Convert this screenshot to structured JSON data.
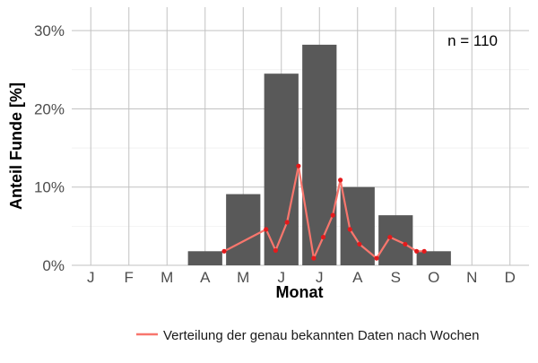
{
  "chart_data": {
    "type": "bar",
    "xlabel": "Monat",
    "ylabel": "Anteil Funde [%]",
    "categories": [
      "J",
      "F",
      "M",
      "A",
      "M",
      "J",
      "J",
      "A",
      "S",
      "O",
      "N",
      "D"
    ],
    "ylim": [
      0,
      33
    ],
    "yticks": [
      0,
      10,
      20,
      30
    ],
    "ytick_labels": [
      "0%",
      "10%",
      "20%",
      "30%"
    ],
    "grid": true,
    "annotation": "n = 110",
    "series": [
      {
        "type": "bar",
        "values": [
          0,
          0,
          0,
          1.8,
          9.1,
          24.5,
          28.2,
          10.0,
          6.4,
          1.8,
          0,
          0
        ],
        "color": "#595959"
      },
      {
        "type": "line",
        "name": "Verteilung der genau bekannten Daten nach Wochen",
        "color": "#f8766d",
        "point_color": "#e41a1c",
        "x": [
          3.5,
          4.6,
          4.85,
          5.15,
          5.45,
          5.85,
          6.1,
          6.35,
          6.55,
          6.8,
          7.05,
          7.5,
          7.85,
          8.25,
          8.55,
          8.75
        ],
        "values": [
          1.8,
          4.6,
          1.9,
          5.5,
          12.7,
          0.9,
          3.6,
          6.4,
          10.9,
          4.6,
          2.7,
          0.9,
          3.6,
          2.7,
          1.8,
          1.8
        ]
      }
    ],
    "legend_position": "bottom-right"
  }
}
